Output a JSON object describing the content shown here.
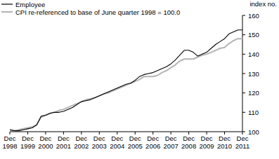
{
  "chart_data": {
    "type": "line",
    "y_label": "index no.",
    "categories": [
      "Dec 1998",
      null,
      null,
      null,
      "Dec 1999",
      null,
      null,
      null,
      "Dec 2000",
      null,
      null,
      null,
      "Dec 2001",
      null,
      null,
      null,
      "Dec 2002",
      null,
      null,
      null,
      "Dec 2003",
      null,
      null,
      null,
      "Dec 2004",
      null,
      null,
      null,
      "Dec 2005",
      null,
      null,
      null,
      "Dec 2006",
      null,
      null,
      null,
      "Dec 2007",
      null,
      null,
      null,
      "Dec 2008",
      null,
      null,
      null,
      "Dec 2009",
      null,
      null,
      null,
      "Dec 2010",
      null,
      null,
      null,
      "Dec 2011"
    ],
    "series": [
      {
        "name": "Employee",
        "color": "#000000",
        "values": [
          101,
          100.5,
          100.5,
          101,
          101.5,
          102,
          103.5,
          108,
          108.5,
          109.5,
          110,
          110,
          110.5,
          111.5,
          112.5,
          114,
          115.5,
          116,
          116.5,
          117.5,
          118.5,
          119.5,
          120.5,
          121.5,
          122.5,
          123.5,
          124.5,
          125,
          126.5,
          128.5,
          129.5,
          130,
          130.5,
          131.5,
          132.5,
          133.5,
          135,
          137,
          139.5,
          142,
          142,
          141,
          139,
          140,
          141,
          143,
          145,
          146.5,
          148,
          150.5,
          151.5,
          152.5,
          152.5
        ]
      },
      {
        "name": "CPI re-referenced to base of June quarter 1998 = 100.0",
        "color": "#b4b4b4",
        "values": [
          101,
          100.5,
          101,
          101.5,
          102,
          102.5,
          103.5,
          107.5,
          108.5,
          109.5,
          110,
          111,
          111.5,
          112.5,
          113.5,
          114.5,
          115.5,
          116.5,
          117,
          117.5,
          118.5,
          119.5,
          120,
          121,
          122,
          123,
          124,
          125,
          126,
          127,
          128.5,
          128.5,
          128.5,
          129,
          130.5,
          131.5,
          133,
          134.5,
          136.5,
          137.5,
          137.5,
          137.5,
          138.5,
          139.5,
          140,
          141,
          142,
          143,
          143.5,
          145.5,
          147,
          148,
          148
        ]
      }
    ],
    "ylim": [
      100,
      160
    ],
    "yticks": [
      100,
      110,
      120,
      130,
      140,
      150,
      160
    ],
    "grid": false,
    "legend": "top-left"
  }
}
